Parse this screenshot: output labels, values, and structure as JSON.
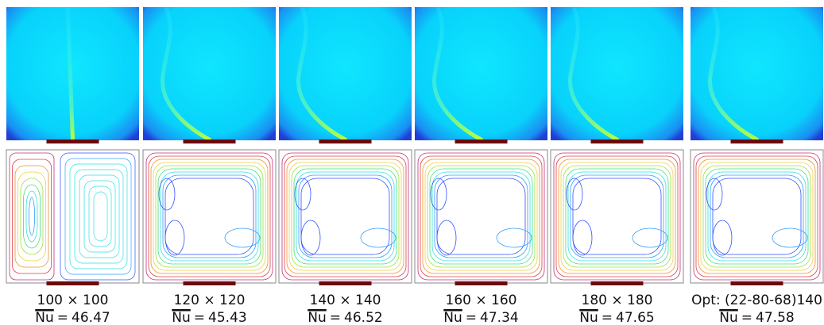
{
  "nu_symbol": "Nu",
  "equals_sign": "=",
  "panels": [
    {
      "grid": "100 × 100",
      "nu": 46.47
    },
    {
      "grid": "120 × 120",
      "nu": 45.43
    },
    {
      "grid": "140 × 140",
      "nu": 46.52
    },
    {
      "grid": "160 × 160",
      "nu": 47.34
    },
    {
      "grid": "180 × 180",
      "nu": 47.65
    },
    {
      "grid": "Opt: (22-80-68)140",
      "nu": 47.58
    }
  ]
}
